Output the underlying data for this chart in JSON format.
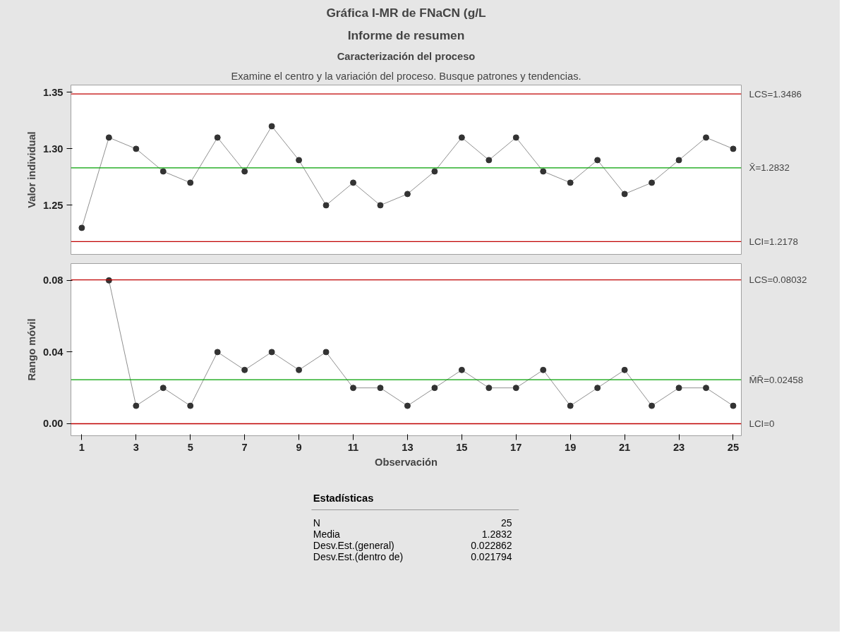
{
  "chart_data": [
    {
      "type": "line",
      "title": "Gráfica I-MR de FNaCN (g/L",
      "subtitle": "Informe de resumen",
      "annotations": [
        "Caracterización del proceso",
        "Examine el centro y la variación del proceso. Busque patrones y tendencias."
      ],
      "ylabel": "Valor individual",
      "x": [
        1,
        2,
        3,
        4,
        5,
        6,
        7,
        8,
        9,
        10,
        11,
        12,
        13,
        14,
        15,
        16,
        17,
        18,
        19,
        20,
        21,
        22,
        23,
        24,
        25
      ],
      "series": [
        {
          "color": "#333333",
          "values": [
            1.23,
            1.31,
            1.3,
            1.28,
            1.27,
            1.31,
            1.28,
            1.32,
            1.29,
            1.25,
            1.27,
            1.25,
            1.26,
            1.28,
            1.31,
            1.29,
            1.31,
            1.28,
            1.27,
            1.29,
            1.26,
            1.27,
            1.29,
            1.31,
            1.3
          ]
        }
      ],
      "xlim": [
        0.6,
        25.3
      ],
      "ylim": [
        1.2065,
        1.3565
      ],
      "yticks": [
        1.25,
        {
          "value": 1.3,
          "label": "1.30"
        },
        1.35
      ],
      "ref_lines": [
        {
          "axis": "y",
          "value": 1.3486,
          "label": "LCS=1.3486",
          "color": "#c00000"
        },
        {
          "axis": "y",
          "value": 1.2832,
          "label": "X̄=1.2832",
          "color": "#00a000"
        },
        {
          "axis": "y",
          "value": 1.2178,
          "label": "LCI=1.2178",
          "color": "#c00000"
        }
      ],
      "tick_labels": "y",
      "grid": false,
      "marker": "circle",
      "line_style": "solid"
    },
    {
      "type": "line",
      "xlabel": "Observación",
      "ylabel": "Rango móvil",
      "x": [
        2,
        3,
        4,
        5,
        6,
        7,
        8,
        9,
        10,
        11,
        12,
        13,
        14,
        15,
        16,
        17,
        18,
        19,
        20,
        21,
        22,
        23,
        24,
        25
      ],
      "series": [
        {
          "color": "#333333",
          "values": [
            0.08,
            0.01,
            0.02,
            0.01,
            0.04,
            0.03,
            0.04,
            0.03,
            0.04,
            0.02,
            0.02,
            0.01,
            0.02,
            0.03,
            0.02,
            0.02,
            0.03,
            0.01,
            0.02,
            0.03,
            0.01,
            0.02,
            0.02,
            0.01
          ]
        }
      ],
      "xlim": [
        0.6,
        25.3
      ],
      "ylim": [
        -0.0067,
        0.0894
      ],
      "xticks": [
        1,
        3,
        5,
        7,
        9,
        11,
        13,
        15,
        17,
        19,
        21,
        23,
        25
      ],
      "yticks": [
        {
          "value": 0,
          "label": "0.00"
        },
        0.04,
        0.08
      ],
      "ref_lines": [
        {
          "axis": "y",
          "value": 0.08032,
          "label": "LCS=0.08032",
          "color": "#c00000"
        },
        {
          "axis": "y",
          "value": 0.02458,
          "label": "M̄R̄=0.02458",
          "color": "#00a000"
        },
        {
          "axis": "y",
          "value": 0,
          "label": "LCI=0",
          "color": "#c00000"
        }
      ],
      "grid": false,
      "marker": "circle",
      "line_style": "solid"
    },
    {
      "type": "other",
      "title": "Estadísticas",
      "annotations": [
        "N",
        "25",
        "Media",
        "1.2832",
        "Desv.Est.(general)",
        "0.022862",
        "Desv.Est.(dentro de)",
        "0.021794"
      ]
    }
  ]
}
